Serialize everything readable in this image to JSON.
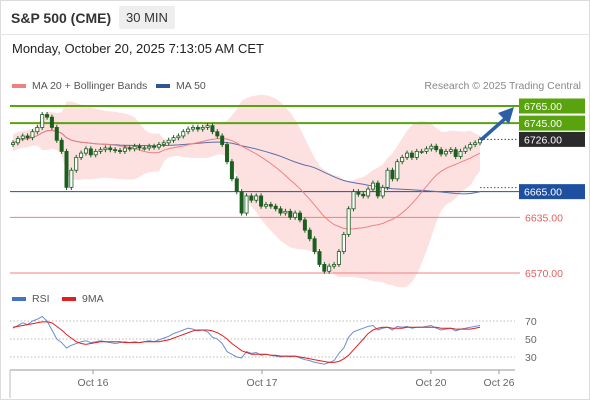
{
  "header": {
    "instrument": "S&P 500 (CME)",
    "timeframe": "30 MIN"
  },
  "datetime": "Monday, October 20, 2025 7:13:05 AM CET",
  "legend": [
    {
      "label": "MA 20 + Bollinger Bands",
      "color": "#f08080"
    },
    {
      "label": "MA 50",
      "color": "#2f5597"
    }
  ],
  "credit": "Research © 2025 Trading Central",
  "rsi_legend": [
    {
      "label": "RSI",
      "color": "#4472c4"
    },
    {
      "label": "9MA",
      "color": "#e02020"
    }
  ],
  "colors": {
    "up": "#2e7d32",
    "down": "#2e7d32",
    "resistance": "#59a30e",
    "pivot": "#1f4fa0",
    "support": "#f08080",
    "band_fill": "#fde1e1",
    "arrow": "#2b5fa8"
  },
  "chart_data": {
    "type": "line",
    "title": "",
    "ylim": [
      6560,
      6780
    ],
    "x_tick_labels": [
      "Oct 16",
      "Oct 17",
      "Oct 20",
      "Oct 26"
    ],
    "levels": [
      {
        "value": 6765.0,
        "label": "6765.00",
        "kind": "resistance"
      },
      {
        "value": 6745.0,
        "label": "6745.00",
        "kind": "resistance"
      },
      {
        "value": 6726.0,
        "label": "6726.00",
        "kind": "last"
      },
      {
        "value": 6665.0,
        "label": "6665.00",
        "kind": "pivot"
      },
      {
        "value": 6635.0,
        "label": "6635.00",
        "kind": "support"
      },
      {
        "value": 6570.0,
        "label": "6570.00",
        "kind": "support"
      }
    ],
    "close": [
      6722,
      6727,
      6730,
      6728,
      6735,
      6740,
      6755,
      6752,
      6740,
      6725,
      6712,
      6670,
      6690,
      6705,
      6710,
      6715,
      6708,
      6712,
      6714,
      6716,
      6714,
      6713,
      6712,
      6716,
      6715,
      6718,
      6716,
      6716,
      6718,
      6717,
      6720,
      6722,
      6725,
      6728,
      6730,
      6735,
      6738,
      6740,
      6738,
      6740,
      6742,
      6735,
      6730,
      6720,
      6700,
      6680,
      6665,
      6640,
      6660,
      6655,
      6660,
      6648,
      6650,
      6648,
      6645,
      6640,
      6642,
      6635,
      6640,
      6632,
      6620,
      6610,
      6595,
      6580,
      6572,
      6578,
      6580,
      6595,
      6615,
      6645,
      6665,
      6662,
      6660,
      6668,
      6675,
      6660,
      6670,
      6690,
      6680,
      6700,
      6705,
      6710,
      6705,
      6712,
      6712,
      6715,
      6718,
      6714,
      6709,
      6712,
      6714,
      6706,
      6712,
      6716,
      6720,
      6722,
      6726
    ],
    "rsi": {
      "ylim": [
        20,
        80
      ],
      "ticks": [
        70,
        50,
        30
      ],
      "values": [
        62,
        65,
        68,
        66,
        70,
        72,
        75,
        70,
        60,
        50,
        46,
        40,
        43,
        45,
        47,
        48,
        46,
        47,
        48,
        47,
        46,
        45,
        46,
        47,
        46,
        47,
        46,
        47,
        48,
        47,
        49,
        51,
        53,
        56,
        58,
        60,
        62,
        61,
        59,
        60,
        58,
        52,
        50,
        45,
        36,
        33,
        30,
        29,
        36,
        34,
        35,
        32,
        33,
        32,
        31,
        30,
        31,
        30,
        31,
        29,
        27,
        26,
        24,
        23,
        22,
        24,
        26,
        34,
        40,
        52,
        58,
        60,
        62,
        64,
        65,
        60,
        62,
        63,
        60,
        64,
        63,
        64,
        62,
        63,
        63,
        64,
        65,
        62,
        60,
        61,
        62,
        59,
        61,
        62,
        63,
        64,
        65
      ],
      "ma9": [
        63,
        64,
        65,
        66,
        67,
        68,
        69,
        69,
        68,
        64,
        60,
        55,
        51,
        47,
        45,
        44,
        45,
        46,
        47,
        47,
        47,
        47,
        47,
        46,
        46,
        46,
        46,
        47,
        47,
        47,
        47,
        48,
        49,
        51,
        53,
        55,
        57,
        59,
        60,
        60,
        60,
        59,
        57,
        54,
        50,
        45,
        41,
        37,
        35,
        33,
        33,
        33,
        33,
        32,
        32,
        31,
        31,
        31,
        31,
        30,
        29,
        28,
        27,
        26,
        25,
        24,
        24,
        25,
        28,
        32,
        38,
        44,
        50,
        56,
        60,
        62,
        63,
        63,
        62,
        62,
        62,
        63,
        63,
        63,
        63,
        63,
        63,
        63,
        62,
        62,
        62,
        61,
        61,
        61,
        61,
        62,
        63
      ]
    }
  }
}
